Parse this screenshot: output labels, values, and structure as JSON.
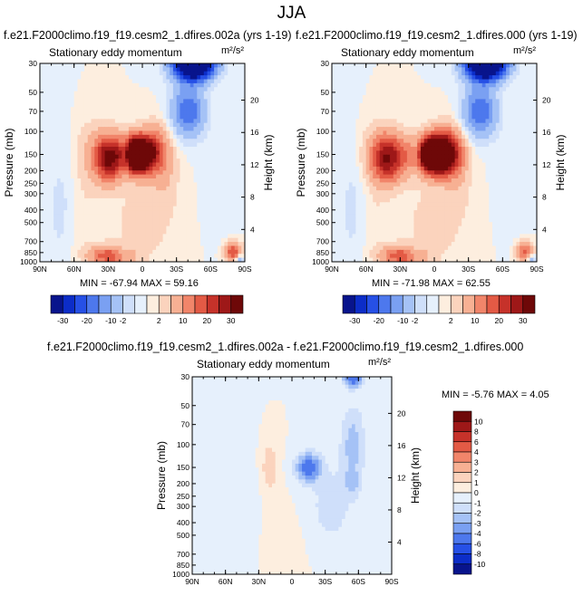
{
  "page": {
    "title": "JJA"
  },
  "colors": {
    "diverging": [
      "#08148c",
      "#0c2dc8",
      "#2650e6",
      "#4d78ed",
      "#7aa0f2",
      "#a5c2f6",
      "#cfdffa",
      "#e6f0fc",
      "#fdeedf",
      "#fbd3bd",
      "#f7b093",
      "#f1856a",
      "#e35a45",
      "#c6322a",
      "#9e1818",
      "#6e0808"
    ],
    "diff": [
      "#08148c",
      "#0c2dc8",
      "#2650e6",
      "#4d78ed",
      "#7aa0f2",
      "#a5c2f6",
      "#cfdffa",
      "#e6f0fc",
      "#fdeedf",
      "#fbd3bd",
      "#f7b093",
      "#f1856a",
      "#e35a45",
      "#c6322a",
      "#9e1818",
      "#6e0808"
    ]
  },
  "chart_data": [
    {
      "type": "heatmap",
      "title": "f.e21.F2000climo.f19_f19.cesm2_1.dfires.002a (yrs 1-19)",
      "subtitle": "Stationary eddy momentum",
      "units": "m²/s²",
      "stats": "MIN = -67.94   MAX =  59.16",
      "xlabel": "",
      "ylabel": "Pressure (mb)",
      "y2label": "Height (km)",
      "x_ticks": [
        "90N",
        "60N",
        "30N",
        "0",
        "30S",
        "60S",
        "90S"
      ],
      "y_ticks": [
        "30",
        "50",
        "70",
        "100",
        "150",
        "200",
        "250",
        "300",
        "400",
        "500",
        "700",
        "850",
        "1000"
      ],
      "y2_ticks": [
        "20",
        "16",
        "12",
        "8",
        "4"
      ],
      "colorbar_labels": [
        "-30",
        "-20",
        "-10",
        "-2",
        "2",
        "10",
        "20",
        "30"
      ]
    },
    {
      "type": "heatmap",
      "title": "f.e21.F2000climo.f19_f19.cesm2_1.dfires.000 (yrs 1-19)",
      "subtitle": "Stationary eddy momentum",
      "units": "m²/s²",
      "stats": "MIN = -71.98   MAX =  62.55",
      "xlabel": "",
      "ylabel": "Pressure (mb)",
      "y2label": "Height (km)",
      "x_ticks": [
        "90N",
        "60N",
        "30N",
        "0",
        "30S",
        "60S",
        "90S"
      ],
      "y_ticks": [
        "30",
        "50",
        "70",
        "100",
        "150",
        "200",
        "250",
        "300",
        "400",
        "500",
        "700",
        "850",
        "1000"
      ],
      "y2_ticks": [
        "20",
        "16",
        "12",
        "8",
        "4"
      ],
      "colorbar_labels": [
        "-30",
        "-20",
        "-10",
        "-2",
        "2",
        "10",
        "20",
        "30"
      ]
    },
    {
      "type": "heatmap",
      "title": "f.e21.F2000climo.f19_f19.cesm2_1.dfires.002a - f.e21.F2000climo.f19_f19.cesm2_1.dfires.000",
      "subtitle": "Stationary eddy momentum",
      "units": "m²/s²",
      "stats": "MIN =  -5.76   MAX =  4.05",
      "xlabel": "",
      "ylabel": "Pressure (mb)",
      "y2label": "Height (km)",
      "x_ticks": [
        "90N",
        "60N",
        "30N",
        "0",
        "30S",
        "60S",
        "90S"
      ],
      "y_ticks": [
        "30",
        "50",
        "70",
        "100",
        "150",
        "200",
        "250",
        "300",
        "400",
        "500",
        "700",
        "850",
        "1000"
      ],
      "y2_ticks": [
        "20",
        "16",
        "12",
        "8",
        "4"
      ],
      "colorbar_labels": [
        "10",
        "8",
        "6",
        "4",
        "3",
        "2",
        "1",
        "0",
        "-1",
        "-2",
        "-3",
        "-4",
        "-6",
        "-8",
        "-10"
      ]
    }
  ]
}
